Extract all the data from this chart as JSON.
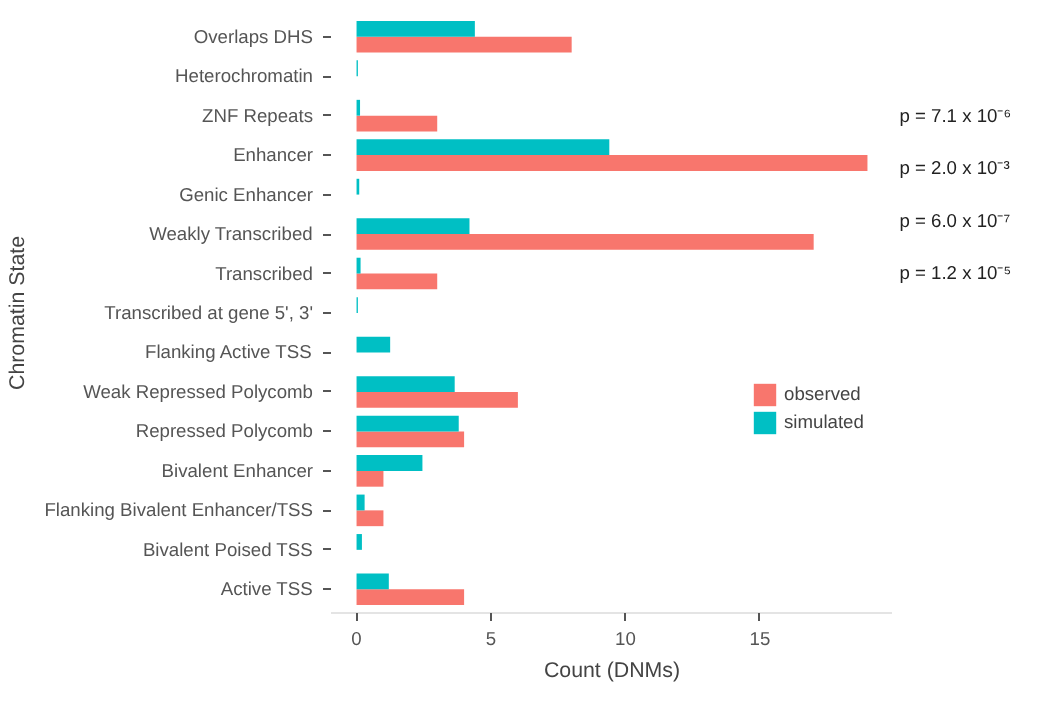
{
  "chart_data": {
    "type": "bar",
    "orientation": "horizontal",
    "xlabel": "Count (DNMs)",
    "ylabel": "Chromatin State",
    "categories": [
      "Overlaps DHS",
      "Heterochromatin",
      "ZNF Repeats",
      "Enhancer",
      "Genic Enhancer",
      "Weakly Transcribed",
      "Transcribed",
      "Transcribed at gene 5', 3'",
      "Flanking Active TSS",
      "Weak Repressed Polycomb",
      "Repressed Polycomb",
      "Bivalent Enhancer",
      "Flanking Bivalent Enhancer/TSS",
      "Bivalent Poised TSS",
      "Active TSS"
    ],
    "series": [
      {
        "name": "observed",
        "color": "#f8766d",
        "values": [
          8,
          0,
          3,
          19,
          0,
          17,
          3,
          0,
          0,
          6,
          4,
          1,
          1,
          0,
          4
        ]
      },
      {
        "name": "simulated",
        "color": "#00bfc4",
        "values": [
          4.4,
          0.05,
          0.13,
          9.4,
          0.1,
          4.2,
          0.15,
          0.05,
          1.25,
          3.65,
          3.8,
          2.45,
          0.3,
          0.2,
          1.2
        ]
      }
    ],
    "xlim": [
      -0.95,
      19.95
    ],
    "xticks": [
      0,
      5,
      10,
      15
    ],
    "grid": false,
    "legend": "right",
    "annotations": [
      "p = 7.1 x 10⁻⁶",
      "p = 2.0 x 10⁻³",
      "p = 6.0 x 10⁻⁷",
      "p = 1.2 x 10⁻⁵"
    ]
  }
}
